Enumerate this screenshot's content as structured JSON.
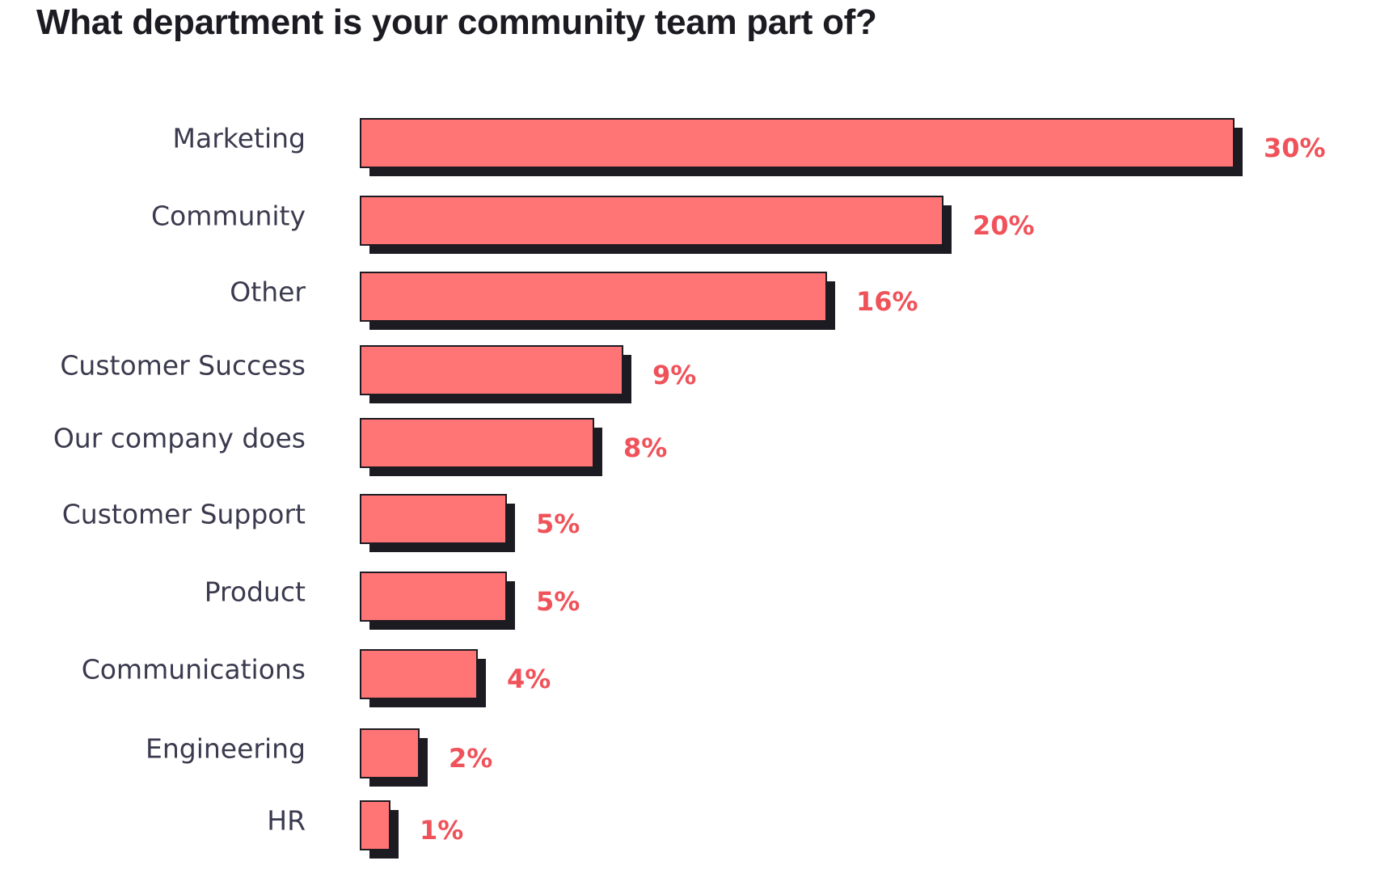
{
  "chart_data": {
    "type": "bar",
    "orientation": "horizontal",
    "title": "What department is your community team part of?",
    "categories": [
      "Marketing",
      "Community",
      "Other",
      "Customer Success",
      "Our company does",
      "Customer Support",
      "Product",
      "Communications",
      "Engineering",
      "HR"
    ],
    "values": [
      30,
      20,
      16,
      9,
      8,
      5,
      5,
      4,
      2,
      1
    ],
    "value_labels": [
      "30%",
      "20%",
      "16%",
      "9%",
      "8%",
      "5%",
      "5%",
      "4%",
      "2%",
      "1%"
    ],
    "unit": "%",
    "xlim": [
      0,
      30
    ],
    "grid": false,
    "legend": "none",
    "colors": {
      "bar_fill": "#ff7575",
      "bar_shadow": "#1c1b22",
      "bar_outline": "#1c1b22",
      "value_text": "#f0525a",
      "category_text": "#3b3a4e",
      "title_text": "#1c1b22"
    }
  }
}
